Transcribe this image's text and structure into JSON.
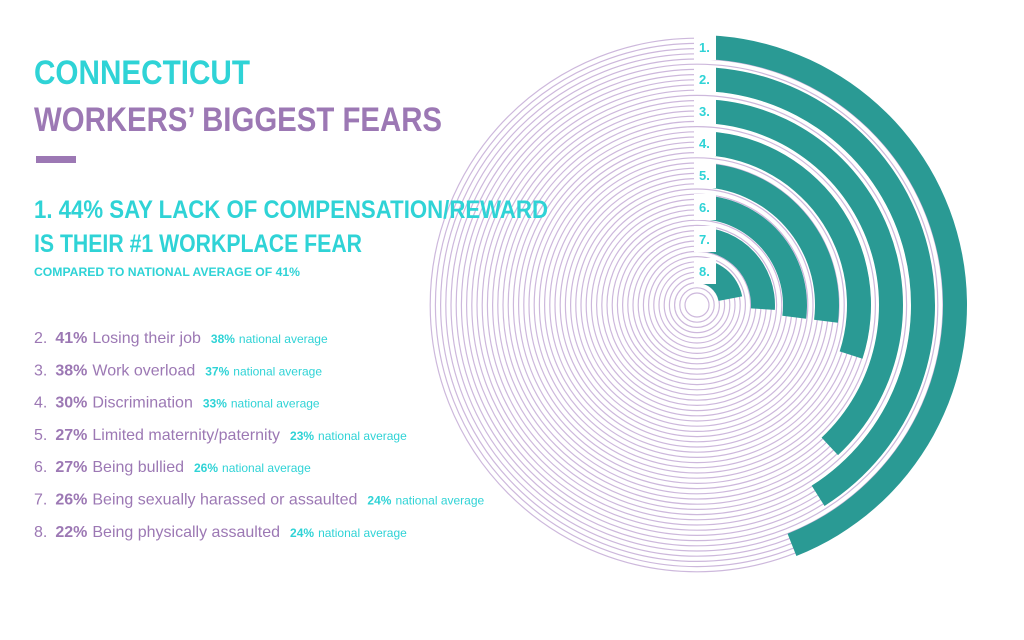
{
  "header": {
    "title_line1": "CONNECTICUT",
    "title_line2": "WORKERS’ BIGGEST FEARS",
    "headline_line1": "1. 44% SAY LACK OF COMPENSATION/REWARD",
    "headline_line2": "IS THEIR #1 WORKPLACE FEAR",
    "subline": "COMPARED TO NATIONAL AVERAGE OF 41%"
  },
  "list": [
    {
      "fear": "Losing their job",
      "national": "38%"
    },
    {
      "fear": "Work overload",
      "national": "37%"
    },
    {
      "fear": "Discrimination",
      "national": "33%"
    },
    {
      "fear": "Limited maternity/paternity",
      "national": "23%"
    },
    {
      "fear": "Being bullied",
      "national": "26%"
    },
    {
      "fear": "Being sexually harassed or assaulted",
      "national": "24%"
    },
    {
      "fear": "Being physically assaulted",
      "national": "24%"
    }
  ],
  "national_suffix": "national average",
  "chart_data": {
    "type": "radial_bar",
    "color": "#2a9a94",
    "categories": [
      "1.",
      "2.",
      "3.",
      "4.",
      "5.",
      "6.",
      "7.",
      "8."
    ],
    "values": [
      44,
      41,
      38,
      30,
      27,
      27,
      26,
      22
    ],
    "value_labels": [
      "44%",
      "41%",
      "38%",
      "30%",
      "27%",
      "27%",
      "26%",
      "22%"
    ],
    "ylim": [
      0,
      100
    ]
  }
}
